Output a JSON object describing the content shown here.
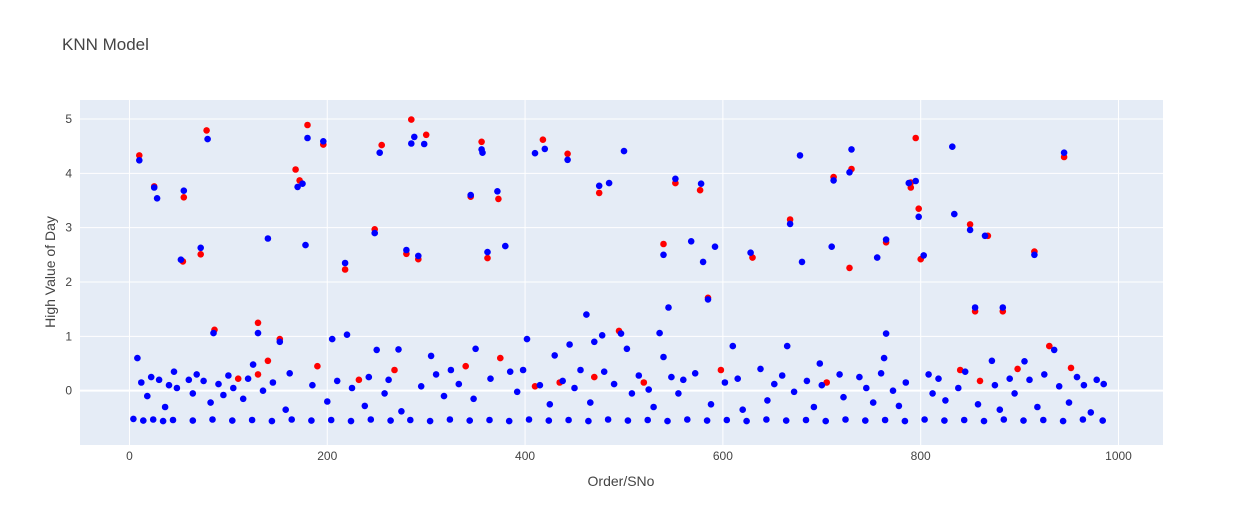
{
  "chart_data": {
    "type": "scatter",
    "title": "KNN Model",
    "xlabel": "Order/SNo",
    "ylabel": "High Value of Day",
    "xlim": [
      -50,
      1045
    ],
    "ylim": [
      -1.0,
      5.35
    ],
    "xticks": [
      0,
      200,
      400,
      600,
      800,
      1000
    ],
    "yticks": [
      0,
      1,
      2,
      3,
      4,
      5
    ],
    "grid": true,
    "background": "#E5ECF6",
    "series": [
      {
        "color": "#ff0000",
        "points": [
          [
            10,
            4.33
          ],
          [
            25,
            3.76
          ],
          [
            55,
            3.56
          ],
          [
            78,
            4.79
          ],
          [
            110,
            0.22
          ],
          [
            130,
            1.25
          ],
          [
            140,
            0.55
          ],
          [
            168,
            4.07
          ],
          [
            172,
            3.87
          ],
          [
            180,
            4.89
          ],
          [
            196,
            4.53
          ],
          [
            218,
            2.23
          ],
          [
            248,
            2.97
          ],
          [
            255,
            4.52
          ],
          [
            285,
            4.99
          ],
          [
            300,
            4.71
          ],
          [
            345,
            3.57
          ],
          [
            356,
            4.58
          ],
          [
            373,
            3.53
          ],
          [
            418,
            4.62
          ],
          [
            443,
            4.36
          ],
          [
            475,
            3.64
          ],
          [
            540,
            2.7
          ],
          [
            552,
            3.82
          ],
          [
            577,
            3.69
          ],
          [
            668,
            3.15
          ],
          [
            712,
            3.93
          ],
          [
            730,
            4.08
          ],
          [
            790,
            3.83
          ],
          [
            795,
            4.65
          ],
          [
            798,
            3.35
          ],
          [
            850,
            3.06
          ],
          [
            855,
            1.46
          ],
          [
            883,
            1.46
          ],
          [
            915,
            2.56
          ],
          [
            930,
            0.82
          ],
          [
            945,
            4.3
          ],
          [
            54,
            2.38
          ],
          [
            72,
            2.51
          ],
          [
            86,
            1.12
          ],
          [
            130,
            0.3
          ],
          [
            152,
            0.95
          ],
          [
            190,
            0.45
          ],
          [
            232,
            0.2
          ],
          [
            268,
            0.38
          ],
          [
            280,
            2.52
          ],
          [
            292,
            2.42
          ],
          [
            340,
            0.45
          ],
          [
            362,
            2.44
          ],
          [
            375,
            0.6
          ],
          [
            410,
            0.08
          ],
          [
            435,
            0.15
          ],
          [
            470,
            0.25
          ],
          [
            495,
            1.1
          ],
          [
            520,
            0.15
          ],
          [
            585,
            1.71
          ],
          [
            598,
            0.38
          ],
          [
            630,
            2.45
          ],
          [
            705,
            0.15
          ],
          [
            728,
            2.26
          ],
          [
            765,
            2.73
          ],
          [
            790,
            3.74
          ],
          [
            800,
            2.42
          ],
          [
            840,
            0.38
          ],
          [
            860,
            0.18
          ],
          [
            868,
            2.85
          ],
          [
            898,
            0.4
          ],
          [
            952,
            0.42
          ]
        ]
      },
      {
        "color": "#0000ff",
        "points": [
          [
            10,
            4.24
          ],
          [
            25,
            3.74
          ],
          [
            28,
            3.54
          ],
          [
            55,
            3.68
          ],
          [
            52,
            2.41
          ],
          [
            72,
            2.63
          ],
          [
            79,
            4.63
          ],
          [
            85,
            1.06
          ],
          [
            140,
            2.8
          ],
          [
            170,
            3.75
          ],
          [
            175,
            3.81
          ],
          [
            178,
            2.68
          ],
          [
            180,
            4.65
          ],
          [
            196,
            4.59
          ],
          [
            218,
            2.35
          ],
          [
            220,
            1.03
          ],
          [
            248,
            2.9
          ],
          [
            253,
            4.38
          ],
          [
            280,
            2.59
          ],
          [
            285,
            4.55
          ],
          [
            288,
            4.67
          ],
          [
            292,
            2.48
          ],
          [
            298,
            4.54
          ],
          [
            345,
            3.6
          ],
          [
            356,
            4.44
          ],
          [
            357,
            4.38
          ],
          [
            362,
            2.55
          ],
          [
            372,
            3.67
          ],
          [
            380,
            2.66
          ],
          [
            410,
            4.37
          ],
          [
            420,
            4.45
          ],
          [
            443,
            4.25
          ],
          [
            475,
            3.77
          ],
          [
            485,
            3.82
          ],
          [
            500,
            4.41
          ],
          [
            540,
            2.5
          ],
          [
            552,
            3.9
          ],
          [
            568,
            2.75
          ],
          [
            578,
            3.81
          ],
          [
            580,
            2.37
          ],
          [
            585,
            1.68
          ],
          [
            592,
            2.65
          ],
          [
            628,
            2.54
          ],
          [
            668,
            3.07
          ],
          [
            678,
            4.33
          ],
          [
            680,
            2.37
          ],
          [
            710,
            2.65
          ],
          [
            712,
            3.87
          ],
          [
            728,
            4.02
          ],
          [
            730,
            4.44
          ],
          [
            756,
            2.45
          ],
          [
            765,
            2.78
          ],
          [
            788,
            3.82
          ],
          [
            795,
            3.86
          ],
          [
            798,
            3.2
          ],
          [
            803,
            2.49
          ],
          [
            832,
            4.49
          ],
          [
            834,
            3.25
          ],
          [
            850,
            2.96
          ],
          [
            855,
            1.53
          ],
          [
            865,
            2.85
          ],
          [
            883,
            1.53
          ],
          [
            915,
            2.5
          ],
          [
            945,
            4.38
          ],
          [
            545,
            1.53
          ],
          [
            462,
            1.4
          ],
          [
            8,
            0.6
          ],
          [
            125,
            0.48
          ],
          [
            130,
            1.06
          ],
          [
            152,
            0.9
          ],
          [
            205,
            0.95
          ],
          [
            250,
            0.75
          ],
          [
            272,
            0.76
          ],
          [
            305,
            0.64
          ],
          [
            350,
            0.77
          ],
          [
            402,
            0.95
          ],
          [
            430,
            0.65
          ],
          [
            445,
            0.85
          ],
          [
            470,
            0.9
          ],
          [
            478,
            1.02
          ],
          [
            497,
            1.05
          ],
          [
            503,
            0.77
          ],
          [
            536,
            1.06
          ],
          [
            540,
            0.62
          ],
          [
            610,
            0.82
          ],
          [
            665,
            0.82
          ],
          [
            698,
            0.5
          ],
          [
            763,
            0.6
          ],
          [
            765,
            1.05
          ],
          [
            872,
            0.55
          ],
          [
            905,
            0.54
          ],
          [
            935,
            0.75
          ],
          [
            12,
            0.15
          ],
          [
            18,
            -0.1
          ],
          [
            22,
            0.25
          ],
          [
            30,
            0.2
          ],
          [
            36,
            -0.3
          ],
          [
            40,
            0.1
          ],
          [
            45,
            0.35
          ],
          [
            48,
            0.05
          ],
          [
            60,
            0.2
          ],
          [
            64,
            -0.05
          ],
          [
            68,
            0.3
          ],
          [
            75,
            0.18
          ],
          [
            82,
            -0.22
          ],
          [
            90,
            0.12
          ],
          [
            95,
            -0.08
          ],
          [
            100,
            0.28
          ],
          [
            105,
            0.05
          ],
          [
            115,
            -0.15
          ],
          [
            120,
            0.22
          ],
          [
            135,
            0.0
          ],
          [
            145,
            0.15
          ],
          [
            158,
            -0.35
          ],
          [
            162,
            0.32
          ],
          [
            185,
            0.1
          ],
          [
            200,
            -0.2
          ],
          [
            210,
            0.18
          ],
          [
            225,
            0.05
          ],
          [
            238,
            -0.28
          ],
          [
            242,
            0.25
          ],
          [
            258,
            -0.05
          ],
          [
            262,
            0.2
          ],
          [
            275,
            -0.38
          ],
          [
            295,
            0.08
          ],
          [
            310,
            0.3
          ],
          [
            318,
            -0.1
          ],
          [
            325,
            0.38
          ],
          [
            333,
            0.12
          ],
          [
            348,
            -0.15
          ],
          [
            365,
            0.22
          ],
          [
            385,
            0.35
          ],
          [
            392,
            -0.02
          ],
          [
            398,
            0.38
          ],
          [
            415,
            0.1
          ],
          [
            425,
            -0.25
          ],
          [
            438,
            0.18
          ],
          [
            450,
            0.05
          ],
          [
            456,
            0.38
          ],
          [
            466,
            -0.22
          ],
          [
            480,
            0.35
          ],
          [
            490,
            0.12
          ],
          [
            508,
            -0.05
          ],
          [
            515,
            0.28
          ],
          [
            525,
            0.02
          ],
          [
            530,
            -0.3
          ],
          [
            548,
            0.25
          ],
          [
            555,
            -0.05
          ],
          [
            560,
            0.2
          ],
          [
            572,
            0.32
          ],
          [
            588,
            -0.25
          ],
          [
            602,
            0.15
          ],
          [
            615,
            0.22
          ],
          [
            620,
            -0.35
          ],
          [
            638,
            0.4
          ],
          [
            645,
            -0.18
          ],
          [
            652,
            0.12
          ],
          [
            660,
            0.28
          ],
          [
            672,
            -0.02
          ],
          [
            685,
            0.18
          ],
          [
            692,
            -0.3
          ],
          [
            700,
            0.1
          ],
          [
            718,
            0.3
          ],
          [
            722,
            -0.12
          ],
          [
            738,
            0.25
          ],
          [
            745,
            0.05
          ],
          [
            752,
            -0.22
          ],
          [
            760,
            0.32
          ],
          [
            772,
            0.0
          ],
          [
            778,
            -0.28
          ],
          [
            785,
            0.15
          ],
          [
            808,
            0.3
          ],
          [
            812,
            -0.05
          ],
          [
            818,
            0.22
          ],
          [
            825,
            -0.18
          ],
          [
            838,
            0.05
          ],
          [
            845,
            0.35
          ],
          [
            858,
            -0.25
          ],
          [
            875,
            0.1
          ],
          [
            880,
            -0.35
          ],
          [
            890,
            0.22
          ],
          [
            895,
            -0.05
          ],
          [
            910,
            0.2
          ],
          [
            918,
            -0.3
          ],
          [
            925,
            0.3
          ],
          [
            940,
            0.08
          ],
          [
            950,
            -0.22
          ],
          [
            958,
            0.25
          ],
          [
            965,
            0.1
          ],
          [
            972,
            -0.4
          ],
          [
            978,
            0.2
          ],
          [
            985,
            0.12
          ],
          [
            4,
            -0.52
          ],
          [
            14,
            -0.55
          ],
          [
            24,
            -0.53
          ],
          [
            34,
            -0.56
          ],
          [
            44,
            -0.54
          ],
          [
            64,
            -0.55
          ],
          [
            84,
            -0.53
          ],
          [
            104,
            -0.55
          ],
          [
            124,
            -0.54
          ],
          [
            144,
            -0.56
          ],
          [
            164,
            -0.53
          ],
          [
            184,
            -0.55
          ],
          [
            204,
            -0.54
          ],
          [
            224,
            -0.56
          ],
          [
            244,
            -0.53
          ],
          [
            264,
            -0.55
          ],
          [
            284,
            -0.54
          ],
          [
            304,
            -0.56
          ],
          [
            324,
            -0.53
          ],
          [
            344,
            -0.55
          ],
          [
            364,
            -0.54
          ],
          [
            384,
            -0.56
          ],
          [
            404,
            -0.53
          ],
          [
            424,
            -0.55
          ],
          [
            444,
            -0.54
          ],
          [
            464,
            -0.56
          ],
          [
            484,
            -0.53
          ],
          [
            504,
            -0.55
          ],
          [
            524,
            -0.54
          ],
          [
            544,
            -0.56
          ],
          [
            564,
            -0.53
          ],
          [
            584,
            -0.55
          ],
          [
            604,
            -0.54
          ],
          [
            624,
            -0.56
          ],
          [
            644,
            -0.53
          ],
          [
            664,
            -0.55
          ],
          [
            684,
            -0.54
          ],
          [
            704,
            -0.56
          ],
          [
            724,
            -0.53
          ],
          [
            744,
            -0.55
          ],
          [
            764,
            -0.54
          ],
          [
            784,
            -0.56
          ],
          [
            804,
            -0.53
          ],
          [
            824,
            -0.55
          ],
          [
            844,
            -0.54
          ],
          [
            864,
            -0.56
          ],
          [
            884,
            -0.53
          ],
          [
            904,
            -0.55
          ],
          [
            924,
            -0.54
          ],
          [
            944,
            -0.56
          ],
          [
            964,
            -0.53
          ],
          [
            984,
            -0.55
          ]
        ]
      }
    ]
  }
}
